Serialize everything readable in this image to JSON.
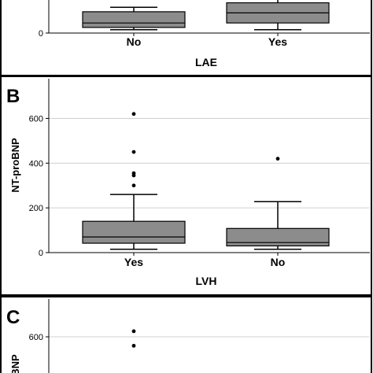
{
  "chart_data": [
    {
      "type": "box",
      "panel_label": "",
      "xlabel": "LAE",
      "ylabel": "",
      "categories": [
        "No",
        "Yes"
      ],
      "y_ticks": [
        0
      ],
      "boxes": [
        {
          "category": "No",
          "whisker_low": 15,
          "q1": 25,
          "median": 45,
          "q3": 95,
          "whisker_high": 115,
          "outliers": []
        },
        {
          "category": "Yes",
          "whisker_low": 15,
          "q1": 45,
          "median": 90,
          "q3": 135,
          "whisker_high": 170,
          "outliers": []
        }
      ]
    },
    {
      "type": "box",
      "panel_label": "B",
      "xlabel": "LVH",
      "ylabel": "NT-proBNP",
      "categories": [
        "Yes",
        "No"
      ],
      "ylim": [
        0,
        700
      ],
      "y_ticks": [
        0,
        200,
        400,
        600
      ],
      "grid": true,
      "boxes": [
        {
          "category": "Yes",
          "whisker_low": 15,
          "q1": 42,
          "median": 70,
          "q3": 140,
          "whisker_high": 260,
          "outliers": [
            300,
            345,
            355,
            450,
            620
          ]
        },
        {
          "category": "No",
          "whisker_low": 15,
          "q1": 30,
          "median": 45,
          "q3": 108,
          "whisker_high": 228,
          "outliers": [
            420
          ]
        }
      ]
    },
    {
      "type": "box",
      "panel_label": "C",
      "xlabel": "",
      "ylabel": "BNP",
      "categories": [],
      "y_ticks": [
        600
      ],
      "grid": true,
      "boxes": [
        {
          "category": "",
          "whisker_low": null,
          "q1": null,
          "median": null,
          "q3": null,
          "whisker_high": null,
          "outliers": [
            625,
            560
          ]
        }
      ]
    }
  ]
}
